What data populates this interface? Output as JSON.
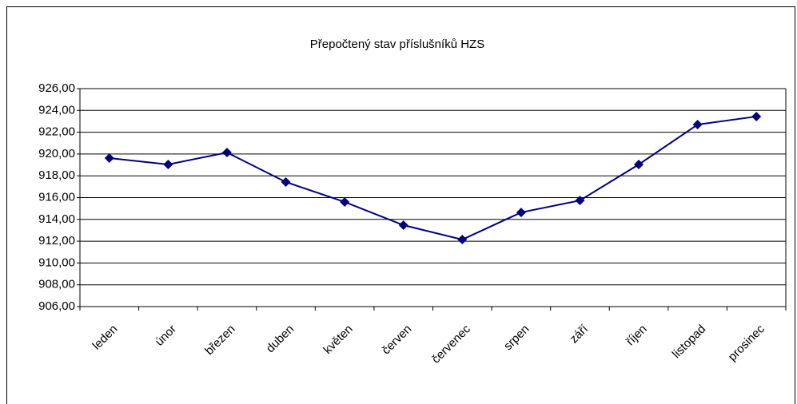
{
  "chart_data": {
    "type": "line",
    "title": "Přepočtený stav příslušníků HZS",
    "categories": [
      "leden",
      "únor",
      "březen",
      "duben",
      "květen",
      "červen",
      "červenec",
      "srpen",
      "září",
      "říjen",
      "listopad",
      "prosinec"
    ],
    "series": [
      {
        "name": "Přepočtený stav příslušníků HZS",
        "color": "#000080",
        "values": [
          919.63,
          919.04,
          920.14,
          917.43,
          915.6,
          913.47,
          912.15,
          914.64,
          915.74,
          919.04,
          922.7,
          923.44
        ]
      }
    ],
    "ylim": [
      906,
      926
    ],
    "yticks": [
      {
        "value": 906,
        "label": "906,00"
      },
      {
        "value": 908,
        "label": "908,00"
      },
      {
        "value": 910,
        "label": "910,00"
      },
      {
        "value": 912,
        "label": "912,00"
      },
      {
        "value": 914,
        "label": "914,00"
      },
      {
        "value": 916,
        "label": "916,00"
      },
      {
        "value": 918,
        "label": "918,00"
      },
      {
        "value": 920,
        "label": "920,00"
      },
      {
        "value": 922,
        "label": "922,00"
      },
      {
        "value": 924,
        "label": "924,00"
      },
      {
        "value": 926,
        "label": "926,00"
      }
    ],
    "grid": true
  }
}
